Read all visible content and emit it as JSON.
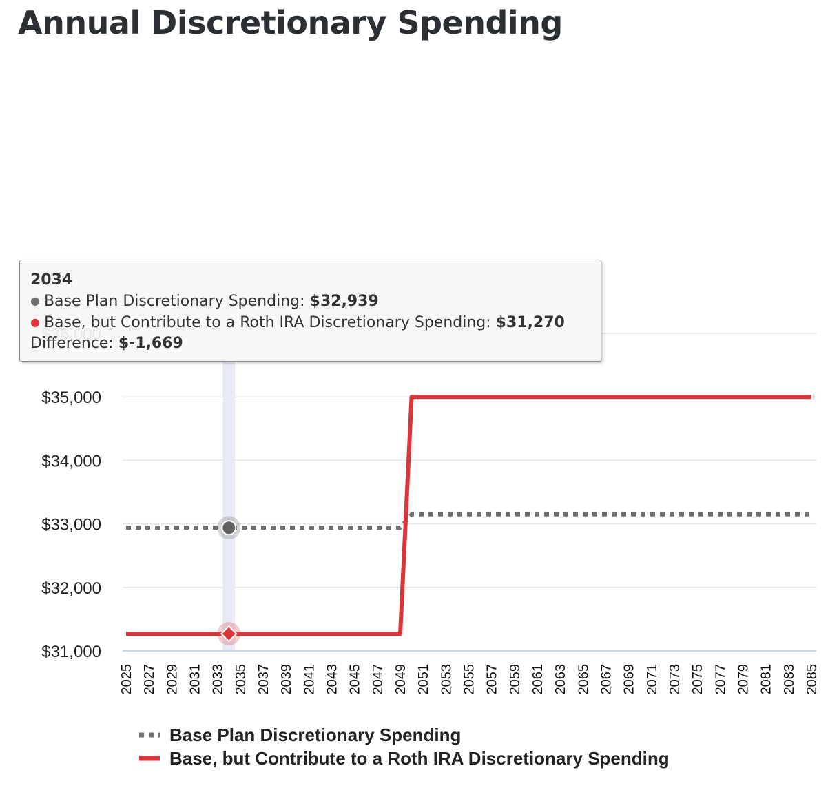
{
  "title": "Annual Discretionary Spending",
  "chart_data": {
    "type": "line",
    "title": "Annual Discretionary Spending",
    "xlabel": "",
    "ylabel": "",
    "xlim": [
      2025,
      2085
    ],
    "ylim": [
      31000,
      36000
    ],
    "grid": true,
    "x_tick_labels": [
      "2025",
      "2027",
      "2029",
      "2031",
      "2033",
      "2035",
      "2037",
      "2039",
      "2041",
      "2043",
      "2045",
      "2047",
      "2049",
      "2051",
      "2053",
      "2055",
      "2057",
      "2059",
      "2061",
      "2063",
      "2065",
      "2067",
      "2069",
      "2071",
      "2073",
      "2075",
      "2077",
      "2079",
      "2081",
      "2083",
      "2085"
    ],
    "y_tick_values": [
      31000,
      32000,
      33000,
      34000,
      35000,
      36000
    ],
    "y_tick_labels": [
      "$31,000",
      "$32,000",
      "$33,000",
      "$34,000",
      "$35,000",
      "$36,000"
    ],
    "series": [
      {
        "name": "Base Plan Discretionary Spending",
        "style": "dotted",
        "color": "#707070",
        "points": [
          [
            2025,
            32939
          ],
          [
            2049,
            32939
          ],
          [
            2050,
            33150
          ],
          [
            2085,
            33150
          ]
        ]
      },
      {
        "name": "Base, but Contribute to a Roth IRA Discretionary Spending",
        "style": "solid",
        "color": "#d9363a",
        "points": [
          [
            2025,
            31270
          ],
          [
            2049,
            31270
          ],
          [
            2050,
            35000
          ],
          [
            2085,
            35000
          ]
        ]
      }
    ],
    "legend_position": "bottom-left",
    "highlight": {
      "x": 2034,
      "base_value": 32939,
      "roth_value": 31270
    }
  },
  "tooltip": {
    "year": "2034",
    "base_label": "Base Plan Discretionary Spending: ",
    "base_value": "$32,939",
    "roth_label": "Base, but Contribute to a Roth IRA Discretionary Spending: ",
    "roth_value": "$31,270",
    "difference_label": "Difference: ",
    "difference_value": "$-1,669",
    "bullet": "●"
  },
  "colors": {
    "base": "#707070",
    "roth": "#d9363a",
    "grid": "#e6e6e6",
    "axis": "#ccd6eb",
    "crosshair": "#e8eaf6"
  }
}
